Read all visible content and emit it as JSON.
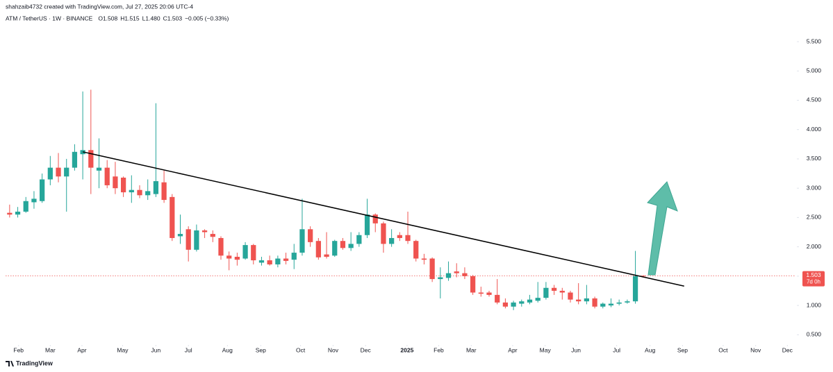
{
  "chart_data": {
    "type": "candlestick",
    "credit": "shahzaib4732 created with TradingView.com, Jul 27, 2025 20:06 UTC-4",
    "symbol": "ATM / TetherUS · 1W · BINANCE",
    "ohlc_legend": [
      "O1.508",
      "H1.515",
      "L1.480",
      "C1.503"
    ],
    "change": "−0.005 (−0.33%)",
    "brand": "TradingView",
    "up_color": "#26a69a",
    "down_color": "#ef5350",
    "candles": [
      {
        "open": 2.58,
        "high": 2.72,
        "low": 2.5,
        "close": 2.55
      },
      {
        "open": 2.55,
        "high": 2.68,
        "low": 2.5,
        "close": 2.6
      },
      {
        "open": 2.6,
        "high": 2.85,
        "low": 2.58,
        "close": 2.78
      },
      {
        "open": 2.76,
        "high": 2.95,
        "low": 2.65,
        "close": 2.82
      },
      {
        "open": 2.78,
        "high": 3.25,
        "low": 2.75,
        "close": 3.15
      },
      {
        "open": 3.15,
        "high": 3.55,
        "low": 3.05,
        "close": 3.35
      },
      {
        "open": 3.35,
        "high": 3.6,
        "low": 3.1,
        "close": 3.2
      },
      {
        "open": 3.2,
        "high": 3.5,
        "low": 2.6,
        "close": 3.35
      },
      {
        "open": 3.35,
        "high": 3.75,
        "low": 3.3,
        "close": 3.62
      },
      {
        "open": 3.58,
        "high": 4.65,
        "low": 3.15,
        "close": 3.65
      },
      {
        "open": 3.65,
        "high": 4.68,
        "low": 2.9,
        "close": 3.35
      },
      {
        "open": 3.3,
        "high": 3.85,
        "low": 3.0,
        "close": 3.35
      },
      {
        "open": 3.35,
        "high": 3.48,
        "low": 3.0,
        "close": 3.05
      },
      {
        "open": 3.2,
        "high": 3.45,
        "low": 2.9,
        "close": 3.0
      },
      {
        "open": 3.18,
        "high": 3.2,
        "low": 2.85,
        "close": 2.93
      },
      {
        "open": 2.93,
        "high": 3.22,
        "low": 2.75,
        "close": 2.97
      },
      {
        "open": 2.97,
        "high": 3.05,
        "low": 2.83,
        "close": 2.88
      },
      {
        "open": 2.88,
        "high": 3.15,
        "low": 2.8,
        "close": 2.95
      },
      {
        "open": 2.9,
        "high": 4.45,
        "low": 2.85,
        "close": 3.12
      },
      {
        "open": 3.1,
        "high": 3.3,
        "low": 2.75,
        "close": 2.8
      },
      {
        "open": 2.85,
        "high": 2.9,
        "low": 2.1,
        "close": 2.15
      },
      {
        "open": 2.18,
        "high": 2.55,
        "low": 2.05,
        "close": 2.22
      },
      {
        "open": 2.3,
        "high": 2.35,
        "low": 1.75,
        "close": 1.95
      },
      {
        "open": 1.95,
        "high": 2.38,
        "low": 1.92,
        "close": 2.28
      },
      {
        "open": 2.28,
        "high": 2.3,
        "low": 2.15,
        "close": 2.25
      },
      {
        "open": 2.22,
        "high": 2.28,
        "low": 2.08,
        "close": 2.17
      },
      {
        "open": 2.15,
        "high": 2.18,
        "low": 1.78,
        "close": 1.85
      },
      {
        "open": 1.85,
        "high": 1.92,
        "low": 1.6,
        "close": 1.8
      },
      {
        "open": 1.83,
        "high": 1.9,
        "low": 1.68,
        "close": 1.78
      },
      {
        "open": 1.8,
        "high": 2.08,
        "low": 1.78,
        "close": 2.03
      },
      {
        "open": 2.03,
        "high": 2.05,
        "low": 1.7,
        "close": 1.77
      },
      {
        "open": 1.73,
        "high": 1.83,
        "low": 1.68,
        "close": 1.77
      },
      {
        "open": 1.77,
        "high": 1.85,
        "low": 1.68,
        "close": 1.7
      },
      {
        "open": 1.7,
        "high": 1.85,
        "low": 1.65,
        "close": 1.8
      },
      {
        "open": 1.8,
        "high": 1.9,
        "low": 1.7,
        "close": 1.76
      },
      {
        "open": 1.78,
        "high": 2.05,
        "low": 1.62,
        "close": 1.9
      },
      {
        "open": 1.9,
        "high": 2.82,
        "low": 1.85,
        "close": 2.3
      },
      {
        "open": 2.3,
        "high": 2.35,
        "low": 2.0,
        "close": 2.08
      },
      {
        "open": 2.1,
        "high": 2.15,
        "low": 1.78,
        "close": 1.82
      },
      {
        "open": 1.87,
        "high": 2.25,
        "low": 1.8,
        "close": 1.83
      },
      {
        "open": 1.85,
        "high": 2.12,
        "low": 1.83,
        "close": 2.1
      },
      {
        "open": 2.1,
        "high": 2.15,
        "low": 1.95,
        "close": 1.98
      },
      {
        "open": 1.98,
        "high": 2.25,
        "low": 1.93,
        "close": 2.05
      },
      {
        "open": 2.05,
        "high": 2.25,
        "low": 2.0,
        "close": 2.2
      },
      {
        "open": 2.2,
        "high": 2.82,
        "low": 2.15,
        "close": 2.55
      },
      {
        "open": 2.55,
        "high": 2.57,
        "low": 2.25,
        "close": 2.4
      },
      {
        "open": 2.4,
        "high": 2.43,
        "low": 1.9,
        "close": 2.05
      },
      {
        "open": 2.05,
        "high": 2.3,
        "low": 2.0,
        "close": 2.15
      },
      {
        "open": 2.2,
        "high": 2.25,
        "low": 2.1,
        "close": 2.15
      },
      {
        "open": 2.2,
        "high": 2.6,
        "low": 2.05,
        "close": 2.1
      },
      {
        "open": 2.1,
        "high": 2.12,
        "low": 1.75,
        "close": 1.8
      },
      {
        "open": 1.8,
        "high": 1.88,
        "low": 1.7,
        "close": 1.78
      },
      {
        "open": 1.8,
        "high": 1.82,
        "low": 1.4,
        "close": 1.45
      },
      {
        "open": 1.45,
        "high": 1.65,
        "low": 1.12,
        "close": 1.48
      },
      {
        "open": 1.47,
        "high": 1.75,
        "low": 1.42,
        "close": 1.55
      },
      {
        "open": 1.58,
        "high": 1.72,
        "low": 1.48,
        "close": 1.55
      },
      {
        "open": 1.55,
        "high": 1.65,
        "low": 1.45,
        "close": 1.5
      },
      {
        "open": 1.5,
        "high": 1.52,
        "low": 1.18,
        "close": 1.22
      },
      {
        "open": 1.22,
        "high": 1.32,
        "low": 1.15,
        "close": 1.2
      },
      {
        "open": 1.22,
        "high": 1.25,
        "low": 1.15,
        "close": 1.18
      },
      {
        "open": 1.18,
        "high": 1.45,
        "low": 1.02,
        "close": 1.05
      },
      {
        "open": 1.05,
        "high": 1.12,
        "low": 0.95,
        "close": 0.98
      },
      {
        "open": 0.98,
        "high": 1.08,
        "low": 0.92,
        "close": 1.05
      },
      {
        "open": 1.03,
        "high": 1.1,
        "low": 0.98,
        "close": 1.07
      },
      {
        "open": 1.05,
        "high": 1.18,
        "low": 1.02,
        "close": 1.1
      },
      {
        "open": 1.08,
        "high": 1.4,
        "low": 1.05,
        "close": 1.13
      },
      {
        "open": 1.13,
        "high": 1.4,
        "low": 1.1,
        "close": 1.3
      },
      {
        "open": 1.3,
        "high": 1.35,
        "low": 1.18,
        "close": 1.25
      },
      {
        "open": 1.25,
        "high": 1.3,
        "low": 1.1,
        "close": 1.22
      },
      {
        "open": 1.22,
        "high": 1.25,
        "low": 1.05,
        "close": 1.1
      },
      {
        "open": 1.1,
        "high": 1.38,
        "low": 1.02,
        "close": 1.07
      },
      {
        "open": 1.07,
        "high": 1.35,
        "low": 1.02,
        "close": 1.12
      },
      {
        "open": 1.12,
        "high": 1.15,
        "low": 0.95,
        "close": 0.98
      },
      {
        "open": 0.98,
        "high": 1.05,
        "low": 0.95,
        "close": 1.03
      },
      {
        "open": 1.0,
        "high": 1.12,
        "low": 0.97,
        "close": 1.03
      },
      {
        "open": 1.03,
        "high": 1.1,
        "low": 1.0,
        "close": 1.05
      },
      {
        "open": 1.05,
        "high": 1.1,
        "low": 1.03,
        "close": 1.07
      },
      {
        "open": 1.07,
        "high": 1.93,
        "low": 1.03,
        "close": 1.5
      },
      {
        "open": 1.508,
        "high": 1.515,
        "low": 1.48,
        "close": 1.503
      }
    ],
    "last_price": 1.503,
    "countdown": "7d 0h",
    "trendline": {
      "x": [
        9,
        83
      ],
      "y": [
        3.62,
        1.33
      ],
      "color": "#000000"
    },
    "xlim": [
      -0.5,
      96.7
    ],
    "ylim": [
      0.35,
      5.95
    ],
    "xticks": [
      {
        "value": 1.1,
        "label": "Feb"
      },
      {
        "value": 5.0,
        "label": "Mar"
      },
      {
        "value": 8.9,
        "label": "Apr"
      },
      {
        "value": 13.9,
        "label": "May"
      },
      {
        "value": 18.0,
        "label": "Jun"
      },
      {
        "value": 22.0,
        "label": "Jul"
      },
      {
        "value": 26.8,
        "label": "Aug"
      },
      {
        "value": 30.9,
        "label": "Sep"
      },
      {
        "value": 35.8,
        "label": "Oct"
      },
      {
        "value": 39.8,
        "label": "Nov"
      },
      {
        "value": 43.8,
        "label": "Dec"
      },
      {
        "value": 48.9,
        "label": "2025"
      },
      {
        "value": 52.8,
        "label": "Feb"
      },
      {
        "value": 56.8,
        "label": "Mar"
      },
      {
        "value": 61.9,
        "label": "Apr"
      },
      {
        "value": 65.9,
        "label": "May"
      },
      {
        "value": 69.7,
        "label": "Jun"
      },
      {
        "value": 74.7,
        "label": "Jul"
      },
      {
        "value": 78.8,
        "label": "Aug"
      },
      {
        "value": 82.8,
        "label": "Sep"
      },
      {
        "value": 87.8,
        "label": "Oct"
      },
      {
        "value": 91.8,
        "label": "Nov"
      },
      {
        "value": 95.7,
        "label": "Dec"
      }
    ],
    "yticks": [
      {
        "value": 0.5,
        "label": "0.500"
      },
      {
        "value": 1,
        "label": "1.000"
      },
      {
        "value": 1.5,
        "label": "1.500"
      },
      {
        "value": 2,
        "label": "2.000"
      },
      {
        "value": 2.5,
        "label": "2.500"
      },
      {
        "value": 3,
        "label": "3.000"
      },
      {
        "value": 3.5,
        "label": "3.500"
      },
      {
        "value": 4,
        "label": "4.000"
      },
      {
        "value": 4.5,
        "label": "4.500"
      },
      {
        "value": 5,
        "label": "5.000"
      },
      {
        "value": 5.5,
        "label": "5.500"
      }
    ]
  }
}
